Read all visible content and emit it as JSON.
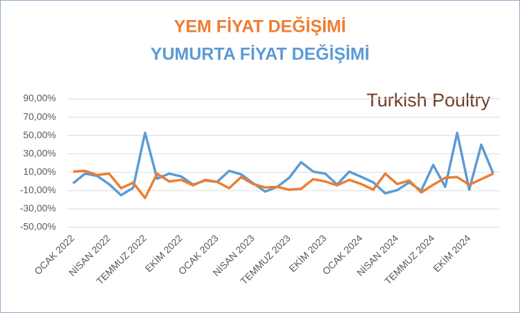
{
  "chart_data": {
    "type": "line",
    "logo": "Turkish Poultry",
    "categories": [
      "OCAK 2022",
      null,
      null,
      "NİSAN 2022",
      null,
      null,
      "TEMMUZ 2022",
      null,
      null,
      "EKİM 2022",
      null,
      null,
      "OCAK 2023",
      null,
      null,
      "NİSAN 2023",
      null,
      null,
      "TEMMUZ 2023",
      null,
      null,
      "EKİM 2023",
      null,
      null,
      "OCAK 2024",
      null,
      null,
      "NİSAN 2024",
      null,
      null,
      "TEMMUZ 2024",
      null,
      null,
      "EKİM 2024",
      null,
      null
    ],
    "series": [
      {
        "name": "YEM FİYAT DEĞİŞİMİ",
        "color": "#ed7d31",
        "values": [
          10.7,
          11.5,
          7,
          8.5,
          -7.4,
          -1.3,
          -18,
          8.5,
          0,
          1.7,
          -4.3,
          1.7,
          -0.5,
          -7.4,
          4.7,
          -2.8,
          -6.6,
          -6,
          -9,
          -8,
          2.5,
          0,
          -4.3,
          1.7,
          -2.8,
          -9,
          8.5,
          -2.8,
          1,
          -12,
          -3.6,
          4,
          4.7,
          -3.6,
          2.5,
          8.5
        ]
      },
      {
        "name": "YUMURTA FİYAT DEĞİŞİMİ",
        "color": "#5b9bd5",
        "values": [
          -2,
          8.5,
          6,
          -3,
          -15,
          -7,
          53,
          3,
          8.5,
          5.5,
          -3.5,
          1,
          -0.5,
          11.5,
          7.7,
          -2,
          -11,
          -6,
          4,
          21,
          10.7,
          8.5,
          -3.5,
          10.7,
          5,
          -1,
          -13,
          -9.5,
          -1,
          -10,
          18,
          -6,
          53,
          -9,
          40,
          8.5
        ]
      }
    ],
    "ylim": [
      -50,
      90
    ],
    "yticks": [
      {
        "value": 90,
        "label": "90,00%"
      },
      {
        "value": 70,
        "label": "70,00%"
      },
      {
        "value": 50,
        "label": "50,00%"
      },
      {
        "value": 30,
        "label": "30,00%"
      },
      {
        "value": 10,
        "label": "10,00%"
      },
      {
        "value": -10,
        "label": "-10,00%"
      },
      {
        "value": -30,
        "label": "-30,00%"
      },
      {
        "value": -50,
        "label": "-50,00%"
      }
    ],
    "grid": true
  }
}
